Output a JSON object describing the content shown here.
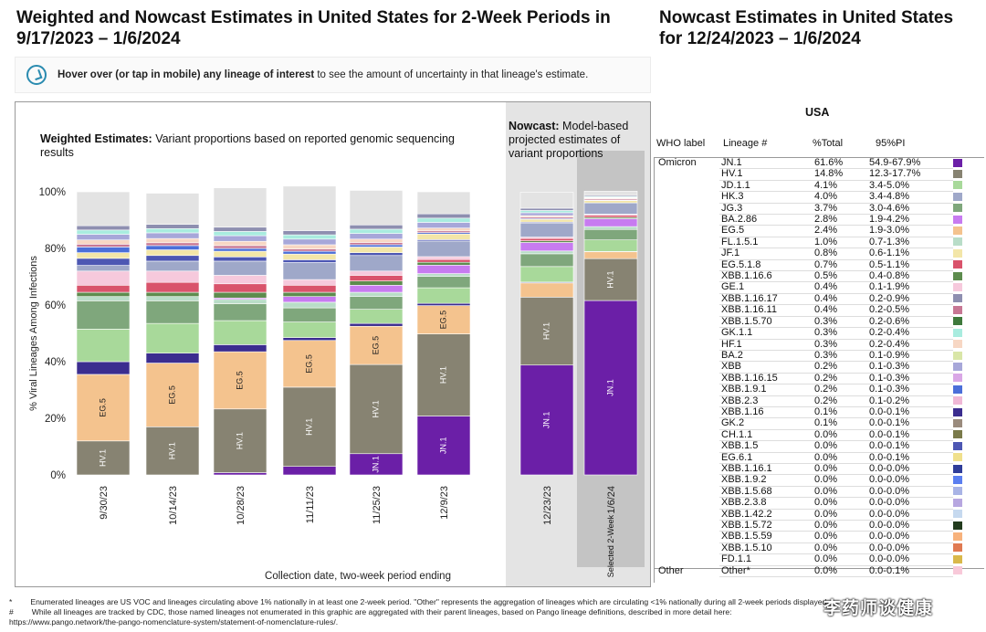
{
  "titles": {
    "left": "Weighted and Nowcast Estimates in United States for 2-Week Periods in 9/17/2023 – 1/6/2024",
    "right": "Nowcast Estimates in United States for 12/24/2023 – 1/6/2024"
  },
  "hover": {
    "bold": "Hover over (or tap in mobile) any lineage of interest",
    "rest": " to see the amount of uncertainty in that lineage's estimate."
  },
  "weighted_heading": {
    "bold": "Weighted Estimates:",
    "rest": " Variant proportions based on reported genomic sequencing results"
  },
  "nowcast_heading": {
    "bold": "Nowcast:",
    "rest": " Model-based projected estimates of variant proportions"
  },
  "selected_label": "Selected 2-Week",
  "table": {
    "region": "USA",
    "headers": {
      "who": "WHO label",
      "lineage": "Lineage #",
      "total": "%Total",
      "pi": "95%PI"
    },
    "rows": [
      {
        "who": "Omicron",
        "lineage": "JN.1",
        "total": "61.6%",
        "pi": "54.9-67.9%",
        "color": "#6b1fa7"
      },
      {
        "who": "",
        "lineage": "HV.1",
        "total": "14.8%",
        "pi": "12.3-17.7%",
        "color": "#878372"
      },
      {
        "who": "",
        "lineage": "JD.1.1",
        "total": "4.1%",
        "pi": "3.4-5.0%",
        "color": "#a8d99a"
      },
      {
        "who": "",
        "lineage": "HK.3",
        "total": "4.0%",
        "pi": "3.4-4.8%",
        "color": "#9fa8c9"
      },
      {
        "who": "",
        "lineage": "JG.3",
        "total": "3.7%",
        "pi": "3.0-4.6%",
        "color": "#7fa77c"
      },
      {
        "who": "",
        "lineage": "BA.2.86",
        "total": "2.8%",
        "pi": "1.9-4.2%",
        "color": "#c77bf0"
      },
      {
        "who": "",
        "lineage": "EG.5",
        "total": "2.4%",
        "pi": "1.9-3.0%",
        "color": "#f4c38e"
      },
      {
        "who": "",
        "lineage": "FL.1.5.1",
        "total": "1.0%",
        "pi": "0.7-1.3%",
        "color": "#b9ddc8"
      },
      {
        "who": "",
        "lineage": "JF.1",
        "total": "0.8%",
        "pi": "0.6-1.1%",
        "color": "#f3e6a8"
      },
      {
        "who": "",
        "lineage": "EG.5.1.8",
        "total": "0.7%",
        "pi": "0.5-1.1%",
        "color": "#d9536b"
      },
      {
        "who": "",
        "lineage": "XBB.1.16.6",
        "total": "0.5%",
        "pi": "0.4-0.8%",
        "color": "#5d8c4e"
      },
      {
        "who": "",
        "lineage": "GE.1",
        "total": "0.4%",
        "pi": "0.1-1.9%",
        "color": "#f6c9dc"
      },
      {
        "who": "",
        "lineage": "XBB.1.16.17",
        "total": "0.4%",
        "pi": "0.2-0.9%",
        "color": "#8e8fb0"
      },
      {
        "who": "",
        "lineage": "XBB.1.16.11",
        "total": "0.4%",
        "pi": "0.2-0.5%",
        "color": "#c77794"
      },
      {
        "who": "",
        "lineage": "XBB.1.5.70",
        "total": "0.3%",
        "pi": "0.2-0.6%",
        "color": "#3f7a3c"
      },
      {
        "who": "",
        "lineage": "GK.1.1",
        "total": "0.3%",
        "pi": "0.2-0.4%",
        "color": "#a9ecdf"
      },
      {
        "who": "",
        "lineage": "HF.1",
        "total": "0.3%",
        "pi": "0.2-0.4%",
        "color": "#f7d7c4"
      },
      {
        "who": "",
        "lineage": "BA.2",
        "total": "0.3%",
        "pi": "0.1-0.9%",
        "color": "#d9e6a7"
      },
      {
        "who": "",
        "lineage": "XBB",
        "total": "0.2%",
        "pi": "0.1-0.3%",
        "color": "#a7a7d9"
      },
      {
        "who": "",
        "lineage": "XBB.1.16.15",
        "total": "0.2%",
        "pi": "0.1-0.3%",
        "color": "#d9a7e6"
      },
      {
        "who": "",
        "lineage": "XBB.1.9.1",
        "total": "0.2%",
        "pi": "0.1-0.3%",
        "color": "#4b6fd9"
      },
      {
        "who": "",
        "lineage": "XBB.2.3",
        "total": "0.2%",
        "pi": "0.1-0.2%",
        "color": "#f0b8d6"
      },
      {
        "who": "",
        "lineage": "XBB.1.16",
        "total": "0.1%",
        "pi": "0.0-0.1%",
        "color": "#3b2d8f"
      },
      {
        "who": "",
        "lineage": "GK.2",
        "total": "0.1%",
        "pi": "0.0-0.1%",
        "color": "#9a8b7d"
      },
      {
        "who": "",
        "lineage": "CH.1.1",
        "total": "0.0%",
        "pi": "0.0-0.1%",
        "color": "#7a7a4a"
      },
      {
        "who": "",
        "lineage": "XBB.1.5",
        "total": "0.0%",
        "pi": "0.0-0.1%",
        "color": "#4d57b3"
      },
      {
        "who": "",
        "lineage": "EG.6.1",
        "total": "0.0%",
        "pi": "0.0-0.1%",
        "color": "#f0e08c"
      },
      {
        "who": "",
        "lineage": "XBB.1.16.1",
        "total": "0.0%",
        "pi": "0.0-0.0%",
        "color": "#2f3d99"
      },
      {
        "who": "",
        "lineage": "XBB.1.9.2",
        "total": "0.0%",
        "pi": "0.0-0.0%",
        "color": "#5b7ff0"
      },
      {
        "who": "",
        "lineage": "XBB.1.5.68",
        "total": "0.0%",
        "pi": "0.0-0.0%",
        "color": "#a9b4e6"
      },
      {
        "who": "",
        "lineage": "XBB.2.3.8",
        "total": "0.0%",
        "pi": "0.0-0.0%",
        "color": "#b7a7e0"
      },
      {
        "who": "",
        "lineage": "XBB.1.42.2",
        "total": "0.0%",
        "pi": "0.0-0.0%",
        "color": "#c6d9ef"
      },
      {
        "who": "",
        "lineage": "XBB.1.5.72",
        "total": "0.0%",
        "pi": "0.0-0.0%",
        "color": "#223b1e"
      },
      {
        "who": "",
        "lineage": "XBB.1.5.59",
        "total": "0.0%",
        "pi": "0.0-0.0%",
        "color": "#f7b27c"
      },
      {
        "who": "",
        "lineage": "XBB.1.5.10",
        "total": "0.0%",
        "pi": "0.0-0.0%",
        "color": "#e07a52"
      },
      {
        "who": "",
        "lineage": "FD.1.1",
        "total": "0.0%",
        "pi": "0.0-0.0%",
        "color": "#d9b84a"
      },
      {
        "who": "Other",
        "lineage": "Other*",
        "total": "0.0%",
        "pi": "0.0-0.1%",
        "color": "#f8c9d9"
      }
    ]
  },
  "footnotes": [
    {
      "mark": "*",
      "text": "Enumerated lineages are US VOC and lineages circulating above 1% nationally in at least one 2-week period. \"Other\" represents the aggregation of lineages which are circulating <1% nationally during all 2-week periods displayed."
    },
    {
      "mark": "#",
      "text": "While all lineages are tracked by CDC, those named lineages not enumerated in this graphic are aggregated with their parent lineages, based on Pango lineage definitions, described in more detail here:"
    },
    {
      "mark": "",
      "text": "https://www.pango.network/the-pango-nomenclature-system/statement-of-nomenclature-rules/."
    }
  ],
  "watermark": "李药师谈健康",
  "chart_data": {
    "type": "bar",
    "stacked": true,
    "ylabel": "% Viral Lineages Among Infections",
    "xlabel": "Collection date, two-week period ending",
    "ylim": [
      0,
      100
    ],
    "yticks": [
      "0%",
      "20%",
      "40%",
      "60%",
      "80%",
      "100%"
    ],
    "categories": [
      "9/30/23",
      "10/14/23",
      "10/28/23",
      "11/11/23",
      "11/25/23",
      "12/9/23",
      "12/23/23",
      "1/6/24"
    ],
    "nowcast_categories": [
      "12/23/23",
      "1/6/24"
    ],
    "series": [
      {
        "name": "JN.1",
        "color": "#6b1fa7",
        "values": [
          0,
          0,
          0.8,
          3.0,
          7.5,
          20.8,
          38.8,
          61.6
        ]
      },
      {
        "name": "HV.1",
        "color": "#878372",
        "values": [
          12.0,
          17.0,
          22.5,
          28.0,
          31.5,
          29.0,
          24.0,
          14.8
        ]
      },
      {
        "name": "EG.5",
        "color": "#f4c38e",
        "values": [
          23.5,
          22.5,
          20.2,
          16.5,
          13.5,
          10.0,
          5.0,
          2.4
        ]
      },
      {
        "name": "XBB.1.16",
        "color": "#3b2d8f",
        "values": [
          4.5,
          3.5,
          2.5,
          1.0,
          1.0,
          0.8,
          0.3,
          0.1
        ]
      },
      {
        "name": "JD.1.1",
        "color": "#a8d99a",
        "values": [
          11.5,
          10.5,
          8.5,
          5.5,
          5.0,
          5.5,
          5.5,
          4.1
        ]
      },
      {
        "name": "JG.3",
        "color": "#7fa77c",
        "values": [
          10.0,
          8.0,
          6.0,
          5.0,
          4.5,
          4.0,
          4.5,
          3.7
        ]
      },
      {
        "name": "FL.1.5.1",
        "color": "#b9ddc8",
        "values": [
          1.5,
          1.5,
          1.5,
          2.0,
          1.5,
          1.0,
          1.0,
          1.0
        ]
      },
      {
        "name": "BA.2.86",
        "color": "#c77bf0",
        "values": [
          0,
          0,
          0.5,
          2.0,
          2.5,
          3.0,
          3.0,
          2.8
        ]
      },
      {
        "name": "XBB.1.16.6",
        "color": "#5d8c4e",
        "values": [
          1.5,
          1.5,
          2.0,
          1.5,
          1.5,
          1.0,
          0.6,
          0.5
        ]
      },
      {
        "name": "EG.5.1.8",
        "color": "#d9536b",
        "values": [
          2.5,
          3.5,
          3.0,
          2.5,
          2.0,
          1.0,
          0.8,
          0.7
        ]
      },
      {
        "name": "GE.1",
        "color": "#f6c9dc",
        "values": [
          5.0,
          4.0,
          3.0,
          2.0,
          1.5,
          1.0,
          0.5,
          0.4
        ]
      },
      {
        "name": "HK.3",
        "color": "#9fa8c9",
        "values": [
          2.0,
          3.5,
          5.0,
          6.0,
          5.5,
          5.5,
          5.0,
          4.0
        ]
      },
      {
        "name": "XBB.1.5",
        "color": "#4d57b3",
        "values": [
          2.5,
          2.0,
          1.5,
          1.0,
          1.0,
          0.5,
          0.3,
          0.0
        ]
      },
      {
        "name": "JF.1",
        "color": "#f3e6a8",
        "values": [
          2.0,
          2.0,
          2.0,
          2.0,
          2.0,
          2.0,
          1.0,
          0.8
        ]
      },
      {
        "name": "XBB.1.9.1",
        "color": "#4b6fd9",
        "values": [
          2.0,
          1.5,
          1.0,
          1.0,
          0.8,
          0.5,
          0.3,
          0.2
        ]
      },
      {
        "name": "XBB.1.16.11",
        "color": "#c77794",
        "values": [
          1.0,
          1.0,
          1.0,
          0.8,
          0.8,
          0.6,
          0.5,
          0.4
        ]
      },
      {
        "name": "HF.1",
        "color": "#f7d7c4",
        "values": [
          1.5,
          1.5,
          1.5,
          1.5,
          1.2,
          1.0,
          0.5,
          0.3
        ]
      },
      {
        "name": "XBB",
        "color": "#a7a7d9",
        "values": [
          2.0,
          2.0,
          2.0,
          2.0,
          2.0,
          2.0,
          1.0,
          0.2
        ]
      },
      {
        "name": "GK.1.1",
        "color": "#a9ecdf",
        "values": [
          1.5,
          1.5,
          1.5,
          1.5,
          1.5,
          1.5,
          0.8,
          0.3
        ]
      },
      {
        "name": "XBB.1.16.17",
        "color": "#8e8fb0",
        "values": [
          1.5,
          1.5,
          1.5,
          1.5,
          1.5,
          1.5,
          0.8,
          0.4
        ]
      },
      {
        "name": "Other",
        "color": "#e3e3e3",
        "values": [
          12.0,
          11.0,
          13.9,
          15.7,
          12.2,
          7.8,
          5.6,
          1.5
        ]
      }
    ]
  }
}
